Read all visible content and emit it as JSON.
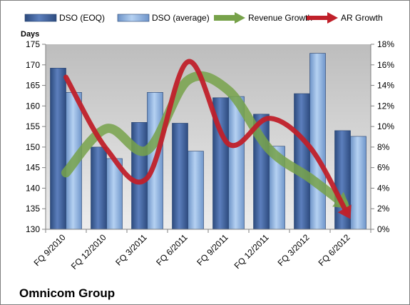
{
  "chart_data": {
    "type": "bar",
    "title": "Omnicom Group",
    "ylabel": "Days",
    "categories": [
      "FQ 9/2010",
      "FQ 12/2010",
      "FQ 3/2011",
      "FQ 6/2011",
      "FQ 9/2011",
      "FQ 12/2011",
      "FQ 3/2012",
      "FQ 6/2012"
    ],
    "ylim": [
      130,
      175
    ],
    "yticks": [
      130,
      135,
      140,
      145,
      150,
      155,
      160,
      165,
      170,
      175
    ],
    "y2lim": [
      0,
      18
    ],
    "y2ticks": [
      "0%",
      "2%",
      "4%",
      "6%",
      "8%",
      "10%",
      "12%",
      "14%",
      "16%",
      "18%"
    ],
    "series": [
      {
        "name": "DSO (EOQ)",
        "type": "bar",
        "axis": "left",
        "color": "#4f6fa8",
        "values": [
          169.2,
          150.0,
          156.0,
          155.8,
          162.0,
          158.0,
          163.0,
          154.0
        ]
      },
      {
        "name": "DSO (average)",
        "type": "bar",
        "axis": "left",
        "color": "#8fb4e3",
        "values": [
          163.3,
          147.2,
          163.3,
          149.0,
          162.3,
          150.2,
          172.8,
          152.6
        ]
      },
      {
        "name": "Revenue Growth",
        "type": "line",
        "axis": "right",
        "color": "#77a24a",
        "values": [
          5.5,
          9.8,
          7.7,
          14.5,
          13.5,
          7.8,
          5.0,
          2.0
        ]
      },
      {
        "name": "AR Growth",
        "type": "line",
        "axis": "right",
        "color": "#c0202a",
        "values": [
          14.8,
          7.8,
          5.0,
          16.3,
          8.3,
          10.8,
          8.0,
          1.0
        ]
      }
    ],
    "legend_position": "top",
    "grid": false
  }
}
